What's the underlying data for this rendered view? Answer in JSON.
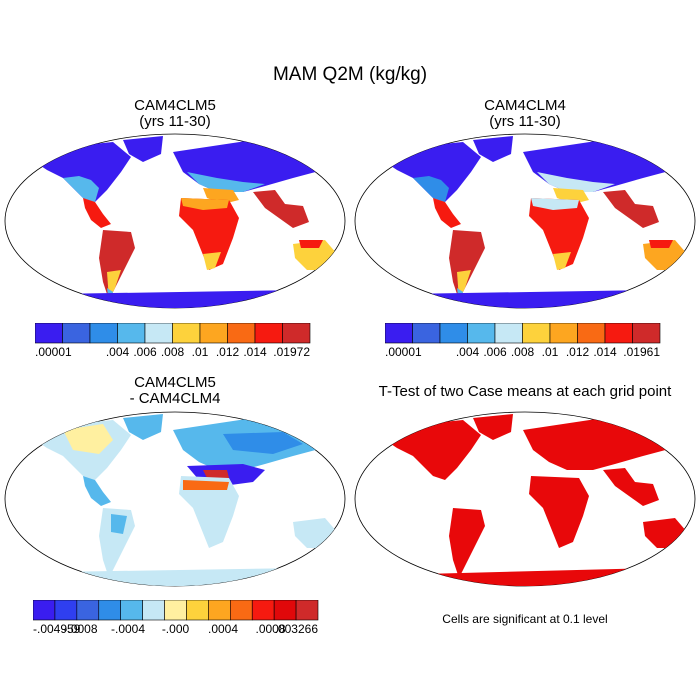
{
  "figure": {
    "title": "MAM Q2M (kg/kg)"
  },
  "panels": [
    {
      "id": "top-left",
      "title_line1": "CAM4CLM5",
      "title_line2": "(yrs 11-30)",
      "colorbar": {
        "colors": [
          "#3a1df0",
          "#3a64e0",
          "#2f8de8",
          "#56b8ec",
          "#c6e8f5",
          "#fdd23c",
          "#fda620",
          "#f96a14",
          "#f61a10",
          "#cf2a2a"
        ],
        "labels": [
          ".00001",
          ".004",
          ".006",
          ".008",
          ".01",
          ".012",
          ".014",
          ".01972"
        ]
      }
    },
    {
      "id": "top-right",
      "title_line1": "CAM4CLM4",
      "title_line2": "(yrs 11-30)",
      "colorbar": {
        "colors": [
          "#3a1df0",
          "#3a64e0",
          "#2f8de8",
          "#56b8ec",
          "#c6e8f5",
          "#fdd23c",
          "#fda620",
          "#f96a14",
          "#f61a10",
          "#cf2a2a"
        ],
        "labels": [
          ".00001",
          ".004",
          ".006",
          ".008",
          ".01",
          ".012",
          ".014",
          ".01961"
        ]
      }
    },
    {
      "id": "bottom-left",
      "title_line1": "CAM4CLM5",
      "title_line2": "- CAM4CLM4",
      "colorbar": {
        "colors": [
          "#3a1df0",
          "#2f3ff0",
          "#3a64e0",
          "#2f8de8",
          "#56b8ec",
          "#c6e8f5",
          "#fff0a0",
          "#fdd23c",
          "#fda620",
          "#f96a14",
          "#f61a10",
          "#e0080a",
          "#cf2a2a"
        ],
        "labels": [
          "-.004959",
          "-.0008",
          "-.0004",
          "-.000",
          ".0004",
          ".0008",
          ".003266"
        ]
      }
    },
    {
      "id": "bottom-right",
      "title_line1": "T-Test of two Case means at each grid point",
      "note": "Cells are significant at 0.1 level"
    }
  ]
}
